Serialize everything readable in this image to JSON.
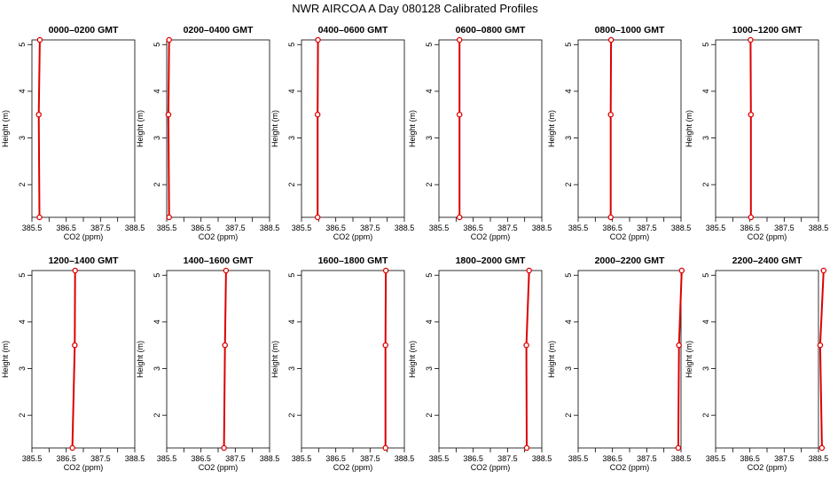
{
  "figure": {
    "title": "NWR AIRCOA A  Day 080128  Calibrated Profiles"
  },
  "colors": {
    "series": "#dd0000",
    "axes": "#000000"
  },
  "chart_data": [
    {
      "type": "line",
      "title": "0000–0200 GMT",
      "xlabel": "CO2 (ppm)",
      "ylabel": "Height (m)",
      "xlim": [
        385.5,
        388.5
      ],
      "ylim": [
        1.3,
        5.1
      ],
      "xticks": [
        "385.5",
        "386.5",
        "387.5",
        "388.5"
      ],
      "yticks": [
        "2",
        "3",
        "4",
        "5"
      ],
      "x": [
        385.72,
        385.7,
        385.73
      ],
      "y": [
        1.3,
        3.5,
        5.1
      ]
    },
    {
      "type": "line",
      "title": "0200–0400 GMT",
      "xlabel": "CO2 (ppm)",
      "ylabel": "Height (m)",
      "xlim": [
        385.5,
        388.5
      ],
      "ylim": [
        1.3,
        5.1
      ],
      "xticks": [
        "385.5",
        "386.5",
        "387.5",
        "388.5"
      ],
      "yticks": [
        "2",
        "3",
        "4",
        "5"
      ],
      "x": [
        385.57,
        385.55,
        385.57
      ],
      "y": [
        1.3,
        3.5,
        5.1
      ]
    },
    {
      "type": "line",
      "title": "0400–0600 GMT",
      "xlabel": "CO2 (ppm)",
      "ylabel": "Height (m)",
      "xlim": [
        385.5,
        388.5
      ],
      "ylim": [
        1.3,
        5.1
      ],
      "xticks": [
        "385.5",
        "386.5",
        "387.5",
        "388.5"
      ],
      "yticks": [
        "2",
        "3",
        "4",
        "5"
      ],
      "x": [
        385.97,
        385.97,
        385.98
      ],
      "y": [
        1.3,
        3.5,
        5.1
      ]
    },
    {
      "type": "line",
      "title": "0600–0800 GMT",
      "xlabel": "CO2 (ppm)",
      "ylabel": "Height (m)",
      "xlim": [
        385.5,
        388.5
      ],
      "ylim": [
        1.3,
        5.1
      ],
      "xticks": [
        "385.5",
        "386.5",
        "387.5",
        "388.5"
      ],
      "yticks": [
        "2",
        "3",
        "4",
        "5"
      ],
      "x": [
        386.1,
        386.1,
        386.1
      ],
      "y": [
        1.3,
        3.5,
        5.1
      ]
    },
    {
      "type": "line",
      "title": "0800–1000 GMT",
      "xlabel": "CO2 (ppm)",
      "ylabel": "Height (m)",
      "xlim": [
        385.5,
        388.5
      ],
      "ylim": [
        1.3,
        5.1
      ],
      "xticks": [
        "385.5",
        "386.5",
        "387.5",
        "388.5"
      ],
      "yticks": [
        "2",
        "3",
        "4",
        "5"
      ],
      "x": [
        386.45,
        386.45,
        386.46
      ],
      "y": [
        1.3,
        3.5,
        5.1
      ]
    },
    {
      "type": "line",
      "title": "1000–1200 GMT",
      "xlabel": "CO2 (ppm)",
      "ylabel": "Height (m)",
      "xlim": [
        385.5,
        388.5
      ],
      "ylim": [
        1.3,
        5.1
      ],
      "xticks": [
        "385.5",
        "386.5",
        "387.5",
        "388.5"
      ],
      "yticks": [
        "2",
        "3",
        "4",
        "5"
      ],
      "x": [
        386.53,
        386.53,
        386.52
      ],
      "y": [
        1.3,
        3.5,
        5.1
      ]
    },
    {
      "type": "line",
      "title": "1200–1400 GMT",
      "xlabel": "CO2 (ppm)",
      "ylabel": "Height (m)",
      "xlim": [
        385.5,
        388.5
      ],
      "ylim": [
        1.3,
        5.1
      ],
      "xticks": [
        "385.5",
        "386.5",
        "387.5",
        "388.5"
      ],
      "yticks": [
        "2",
        "3",
        "4",
        "5"
      ],
      "x": [
        386.68,
        386.75,
        386.76
      ],
      "y": [
        1.3,
        3.5,
        5.1
      ]
    },
    {
      "type": "line",
      "title": "1400–1600 GMT",
      "xlabel": "CO2 (ppm)",
      "ylabel": "Height (m)",
      "xlim": [
        385.5,
        388.5
      ],
      "ylim": [
        1.3,
        5.1
      ],
      "xticks": [
        "385.5",
        "386.5",
        "387.5",
        "388.5"
      ],
      "yticks": [
        "2",
        "3",
        "4",
        "5"
      ],
      "x": [
        387.17,
        387.2,
        387.23
      ],
      "y": [
        1.3,
        3.5,
        5.1
      ]
    },
    {
      "type": "line",
      "title": "1600–1800 GMT",
      "xlabel": "CO2 (ppm)",
      "ylabel": "Height (m)",
      "xlim": [
        385.5,
        388.5
      ],
      "ylim": [
        1.3,
        5.1
      ],
      "xticks": [
        "385.5",
        "386.5",
        "387.5",
        "388.5"
      ],
      "yticks": [
        "2",
        "3",
        "4",
        "5"
      ],
      "x": [
        387.95,
        387.95,
        387.96
      ],
      "y": [
        1.3,
        3.5,
        5.1
      ]
    },
    {
      "type": "line",
      "title": "1800–2000 GMT",
      "xlabel": "CO2 (ppm)",
      "ylabel": "Height (m)",
      "xlim": [
        385.5,
        388.5
      ],
      "ylim": [
        1.3,
        5.1
      ],
      "xticks": [
        "385.5",
        "386.5",
        "387.5",
        "388.5"
      ],
      "yticks": [
        "2",
        "3",
        "4",
        "5"
      ],
      "x": [
        388.06,
        388.05,
        388.13
      ],
      "y": [
        1.3,
        3.5,
        5.1
      ]
    },
    {
      "type": "line",
      "title": "2000–2200 GMT",
      "xlabel": "CO2 (ppm)",
      "ylabel": "Height (m)",
      "xlim": [
        385.5,
        388.5
      ],
      "ylim": [
        1.3,
        5.1
      ],
      "xticks": [
        "385.5",
        "386.5",
        "387.5",
        "388.5"
      ],
      "yticks": [
        "2",
        "3",
        "4",
        "5"
      ],
      "x": [
        388.42,
        388.44,
        388.52
      ],
      "y": [
        1.3,
        3.5,
        5.1
      ]
    },
    {
      "type": "line",
      "title": "2200–2400 GMT",
      "xlabel": "CO2 (ppm)",
      "ylabel": "Height (m)",
      "xlim": [
        385.5,
        388.5
      ],
      "ylim": [
        1.3,
        5.1
      ],
      "xticks": [
        "385.5",
        "386.5",
        "387.5",
        "388.5"
      ],
      "yticks": [
        "2",
        "3",
        "4",
        "5"
      ],
      "x": [
        388.6,
        388.55,
        388.65
      ],
      "y": [
        1.3,
        3.5,
        5.1
      ]
    }
  ]
}
